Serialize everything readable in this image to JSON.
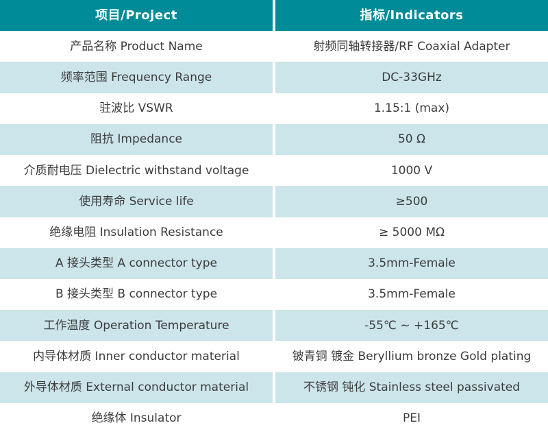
{
  "colors": {
    "header_bg": "#008b98",
    "header_text": "#ffffff",
    "row_bg": "#ffffff",
    "row_alt_bg": "#cce5ea",
    "body_text": "#3c3c3c",
    "divider": "#ffffff"
  },
  "table": {
    "header": {
      "project": "项目/Project",
      "indicators": "指标/Indicators"
    },
    "rows": [
      {
        "project": "产品名称 Product Name",
        "indicator": "射频同轴转接器/RF Coaxial Adapter"
      },
      {
        "project": "频率范围 Frequency Range",
        "indicator": "DC-33GHz"
      },
      {
        "project": "驻波比 VSWR",
        "indicator": "1.15:1 (max)"
      },
      {
        "project": "阻抗 Impedance",
        "indicator": "50 Ω"
      },
      {
        "project": "介质耐电压 Dielectric withstand voltage",
        "indicator": "1000 V"
      },
      {
        "project": "使用寿命 Service life",
        "indicator": "≥500"
      },
      {
        "project": "绝缘电阻 Insulation Resistance",
        "indicator": "≥ 5000 MΩ"
      },
      {
        "project": "A 接头类型 A connector type",
        "indicator": "3.5mm-Female"
      },
      {
        "project": "B 接头类型 B connector type",
        "indicator": "3.5mm-Female"
      },
      {
        "project": "工作温度 Operation Temperature",
        "indicator": "-55℃ ~ +165℃"
      },
      {
        "project": "内导体材质 Inner conductor material",
        "indicator": "铍青铜 镀金 Beryllium bronze Gold plating"
      },
      {
        "project": "外导体材质 External conductor material",
        "indicator": "不锈钢 钝化 Stainless steel passivated"
      },
      {
        "project": "绝缘体 Insulator",
        "indicator": "PEI"
      }
    ]
  }
}
